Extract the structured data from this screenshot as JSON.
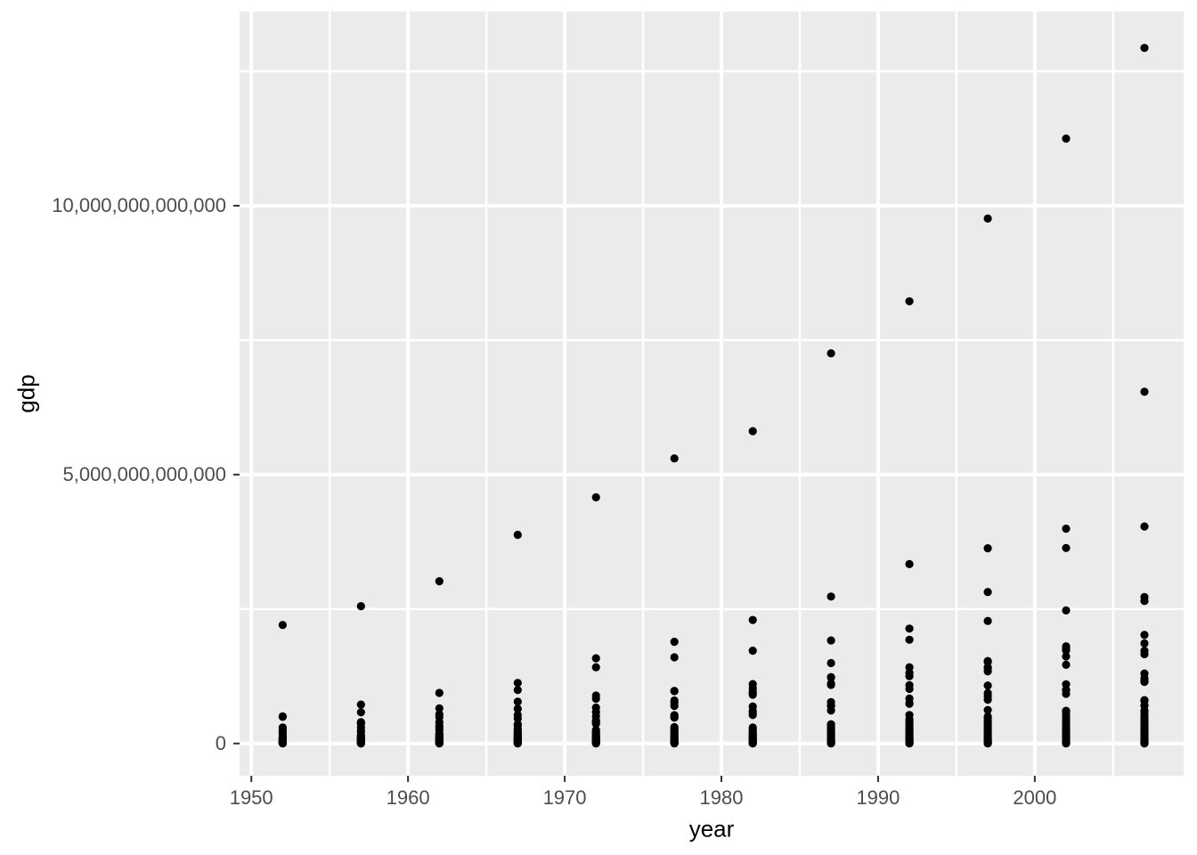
{
  "chart_data": {
    "type": "scatter",
    "title": "",
    "xlabel": "year",
    "ylabel": "gdp",
    "legend_position": "none",
    "grid": "major and minor white gridlines on gray panel",
    "panel_background": "#EBEBEB",
    "grid_major_color": "#FFFFFF",
    "grid_minor_color": "#FFFFFF",
    "point_color": "#000000",
    "axis_text_color": "#4D4D4D",
    "axis_title_color": "#000000",
    "tick_mark_color": "#333333",
    "xlim": [
      1949.25,
      2009.5
    ],
    "ylim": [
      -600000000000,
      13610000000000
    ],
    "x_ticks": {
      "values": [
        1950,
        1960,
        1970,
        1980,
        1990,
        2000
      ],
      "labels": [
        "1950",
        "1960",
        "1970",
        "1980",
        "1990",
        "2000"
      ]
    },
    "x_minor_gridlines": [
      1955,
      1965,
      1975,
      1985,
      1995,
      2005
    ],
    "y_ticks": {
      "values": [
        0,
        5000000000000,
        10000000000000
      ],
      "labels": [
        "0",
        "5,000,000,000,000",
        "10,000,000,000,000"
      ]
    },
    "y_minor_gridlines": [
      2500000000000,
      7500000000000,
      12500000000000
    ],
    "series": [
      {
        "x": 1952,
        "y": [
          2204000000000.0,
          503000000000.0,
          494000000000.0,
          298000000000.0,
          278000000000.0,
          231000000000.0,
          223000000000.0,
          203000000000.0,
          166000000000.0,
          120000000000.0,
          110000000000.0,
          106000000000.0,
          95000000000.0,
          87000000000.0,
          80000000000.0,
          72000000000.0,
          65000000000.0,
          58000000000.0,
          51000000000.0,
          45000000000.0,
          39000000000.0,
          33000000000.0,
          28000000000.0,
          23000000000.0,
          18000000000.0,
          14000000000.0,
          10000000000.0,
          7000000000.0,
          4000000000.0,
          2000000000.0
        ]
      },
      {
        "x": 1957,
        "y": [
          2553000000000.0,
          723000000000.0,
          580000000000.0,
          395000000000.0,
          384000000000.0,
          367000000000.0,
          298000000000.0,
          241000000000.0,
          212000000000.0,
          151000000000.0,
          136000000000.0,
          127000000000.0,
          115000000000.0,
          105000000000.0,
          95000000000.0,
          85000000000.0,
          75000000000.0,
          66000000000.0,
          57000000000.0,
          49000000000.0,
          42000000000.0,
          35000000000.0,
          29000000000.0,
          23000000000.0,
          18000000000.0,
          13000000000.0,
          9000000000.0,
          6000000000.0,
          3000000000.0,
          1000000000.0
        ]
      },
      {
        "x": 1962,
        "y": [
          3017000000000.0,
          940000000000.0,
          652000000000.0,
          543000000000.0,
          488000000000.0,
          397000000000.0,
          325000000000.0,
          296000000000.0,
          252000000000.0,
          192000000000.0,
          180000000000.0,
          150000000000.0,
          140000000000.0,
          128000000000.0,
          116000000000.0,
          104000000000.0,
          93000000000.0,
          82000000000.0,
          72000000000.0,
          62000000000.0,
          53000000000.0,
          44000000000.0,
          36000000000.0,
          29000000000.0,
          22000000000.0,
          16000000000.0,
          11000000000.0,
          7000000000.0,
          4000000000.0,
          1000000000.0
        ]
      },
      {
        "x": 1967,
        "y": [
          3880000000000.0,
          1126000000000.0,
          993000000000.0,
          777000000000.0,
          644000000000.0,
          528000000000.0,
          462000000000.0,
          355000000000.0,
          335000000000.0,
          274000000000.0,
          249000000000.0,
          217000000000.0,
          190000000000.0,
          170000000000.0,
          152000000000.0,
          135000000000.0,
          119000000000.0,
          104000000000.0,
          90000000000.0,
          77000000000.0,
          65000000000.0,
          54000000000.0,
          44000000000.0,
          35000000000.0,
          27000000000.0,
          20000000000.0,
          14000000000.0,
          9000000000.0,
          5000000000.0,
          2000000000.0
        ]
      },
      {
        "x": 1972,
        "y": [
          4577000000000.0,
          1584000000000.0,
          1418000000000.0,
          891000000000.0,
          833000000000.0,
          667000000000.0,
          583000000000.0,
          503000000000.0,
          423000000000.0,
          413000000000.0,
          381000000000.0,
          367000000000.0,
          251000000000.0,
          225000000000.0,
          201000000000.0,
          178000000000.0,
          157000000000.0,
          137000000000.0,
          119000000000.0,
          102000000000.0,
          86000000000.0,
          72000000000.0,
          59000000000.0,
          47000000000.0,
          37000000000.0,
          28000000000.0,
          20000000000.0,
          14000000000.0,
          9000000000.0,
          5000000000.0,
          2000000000.0
        ]
      },
      {
        "x": 1977,
        "y": [
          5301000000000.0,
          1891000000000.0,
          1603000000000.0,
          979000000000.0,
          973000000000.0,
          799000000000.0,
          761000000000.0,
          699000000000.0,
          526000000000.0,
          521000000000.0,
          489000000000.0,
          482000000000.0,
          304000000000.0,
          272000000000.0,
          243000000000.0,
          215000000000.0,
          190000000000.0,
          166000000000.0,
          144000000000.0,
          124000000000.0,
          105000000000.0,
          88000000000.0,
          73000000000.0,
          59000000000.0,
          46000000000.0,
          35000000000.0,
          26000000000.0,
          18000000000.0,
          11000000000.0,
          6000000000.0,
          2000000000.0
        ]
      },
      {
        "x": 1982,
        "y": [
          5807000000000.0,
          2296000000000.0,
          1726000000000.0,
          1105000000000.0,
          1027000000000.0,
          963000000000.0,
          935000000000.0,
          907000000000.0,
          689000000000.0,
          606000000000.0,
          577000000000.0,
          529000000000.0,
          296000000000.0,
          269000000000.0,
          233000000000.0,
          200000000000.0,
          180000000000.0,
          161000000000.0,
          143000000000.0,
          126000000000.0,
          110000000000.0,
          95000000000.0,
          81000000000.0,
          68000000000.0,
          56000000000.0,
          45000000000.0,
          35000000000.0,
          26000000000.0,
          19000000000.0,
          13000000000.0,
          8000000000.0,
          4000000000.0,
          1000000000.0
        ]
      },
      {
        "x": 1987,
        "y": [
          7256000000000.0,
          2732000000000.0,
          1915000000000.0,
          1495000000000.0,
          1234000000000.0,
          1228000000000.0,
          1116000000000.0,
          1090000000000.0,
          770000000000.0,
          707000000000.0,
          696000000000.0,
          613000000000.0,
          356000000000.0,
          355000000000.0,
          311000000000.0,
          296000000000.0,
          270000000000.0,
          242000000000.0,
          215000000000.0,
          190000000000.0,
          166000000000.0,
          144000000000.0,
          123000000000.0,
          104000000000.0,
          87000000000.0,
          71000000000.0,
          57000000000.0,
          45000000000.0,
          34000000000.0,
          25000000000.0,
          17000000000.0,
          11000000000.0,
          6000000000.0,
          2000000000.0
        ]
      },
      {
        "x": 1992,
        "y": [
          8222000000000.0,
          3335000000000.0,
          2136000000000.0,
          1929000000000.0,
          1417000000000.0,
          1314000000000.0,
          1251000000000.0,
          1084000000000.0,
          1015000000000.0,
          835000000000.0,
          751000000000.0,
          736000000000.0,
          530000000000.0,
          447000000000.0,
          410000000000.0,
          371000000000.0,
          335000000000.0,
          300000000000.0,
          267000000000.0,
          236000000000.0,
          207000000000.0,
          180000000000.0,
          155000000000.0,
          132000000000.0,
          111000000000.0,
          92000000000.0,
          75000000000.0,
          60000000000.0,
          46000000000.0,
          34000000000.0,
          24000000000.0,
          16000000000.0,
          9000000000.0,
          4000000000.0,
          1000000000.0
        ]
      },
      {
        "x": 1997,
        "y": [
          9761000000000.0,
          3630000000000.0,
          2816000000000.0,
          2279000000000.0,
          1533000000000.0,
          1518000000000.0,
          1418000000000.0,
          1399000000000.0,
          1341000000000.0,
          1078000000000.0,
          937000000000.0,
          878000000000.0,
          815000000000.0,
          622000000000.0,
          501000000000.0,
          472000000000.0,
          425000000000.0,
          381000000000.0,
          340000000000.0,
          301000000000.0,
          265000000000.0,
          232000000000.0,
          201000000000.0,
          172000000000.0,
          146000000000.0,
          122000000000.0,
          100000000000.0,
          81000000000.0,
          64000000000.0,
          49000000000.0,
          36000000000.0,
          25000000000.0,
          16000000000.0,
          9000000000.0,
          4000000000.0,
          1000000000.0
        ]
      },
      {
        "x": 2002,
        "y": [
          11248000000000.0,
          3994000000000.0,
          3635000000000.0,
          2474000000000.0,
          1807000000000.0,
          1766000000000.0,
          1733000000000.0,
          1620000000000.0,
          1463000000000.0,
          1101000000000.0,
          997000000000.0,
          994000000000.0,
          923000000000.0,
          607000000000.0,
          600000000000.0,
          544000000000.0,
          490000000000.0,
          440000000000.0,
          393000000000.0,
          349000000000.0,
          308000000000.0,
          270000000000.0,
          235000000000.0,
          202000000000.0,
          172000000000.0,
          144000000000.0,
          119000000000.0,
          96000000000.0,
          76000000000.0,
          58000000000.0,
          43000000000.0,
          30000000000.0,
          19000000000.0,
          11000000000.0,
          5000000000.0,
          1000000000.0
        ]
      },
      {
        "x": 2007,
        "y": [
          12934000000000.0,
          6539000000000.0,
          4035000000000.0,
          2723000000000.0,
          2651000000000.0,
          2018000000000.0,
          1861000000000.0,
          1723000000000.0,
          1661000000000.0,
          1302000000000.0,
          1213000000000.0,
          1166000000000.0,
          1145000000000.0,
          806000000000.0,
          791000000000.0,
          704000000000.0,
          610000000000.0,
          602000000000.0,
          545000000000.0,
          490000000000.0,
          438000000000.0,
          389000000000.0,
          343000000000.0,
          300000000000.0,
          260000000000.0,
          223000000000.0,
          189000000000.0,
          157000000000.0,
          128000000000.0,
          102000000000.0,
          79000000000.0,
          59000000000.0,
          42000000000.0,
          28000000000.0,
          17000000000.0,
          9000000000.0,
          4000000000.0,
          1000000000.0
        ]
      }
    ]
  }
}
